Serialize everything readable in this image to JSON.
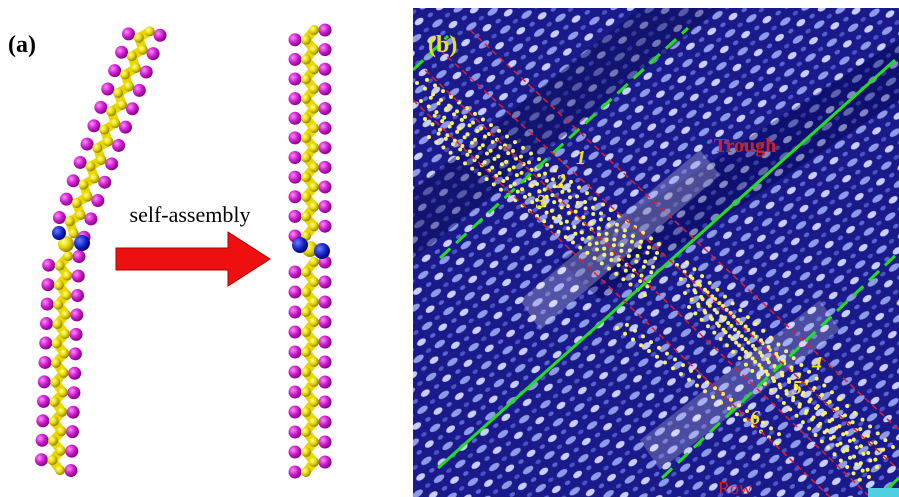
{
  "panel_a": {
    "label": "(a)",
    "arrow_label": "self-assembly"
  },
  "panel_b": {
    "label": "(b)",
    "trough": "Trough",
    "row": "Row",
    "markers": [
      "1",
      "2",
      "3",
      "4",
      "5",
      "6"
    ]
  }
}
